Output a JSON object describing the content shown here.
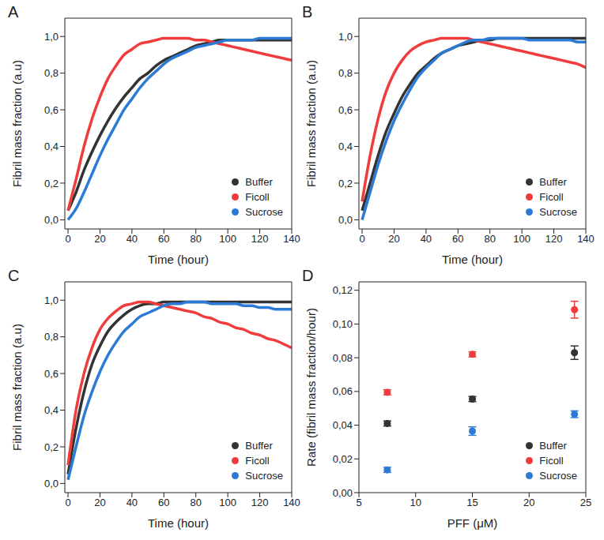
{
  "chart_data": [
    {
      "panel": "A",
      "type": "line",
      "x_label": "Time (hour)",
      "y_label": "Fibril mass fraction (a.u)",
      "x": [
        0,
        5,
        10,
        15,
        20,
        25,
        30,
        35,
        40,
        45,
        50,
        55,
        60,
        65,
        70,
        75,
        80,
        85,
        90,
        95,
        100,
        105,
        110,
        115,
        120,
        125,
        130,
        135,
        140
      ],
      "xlim": [
        -2,
        140
      ],
      "xticks": [
        0,
        20,
        40,
        60,
        80,
        100,
        120,
        140
      ],
      "ylim": [
        -0.05,
        1.1
      ],
      "yticks": [
        {
          "value": 0,
          "label": "0,0"
        },
        {
          "value": 0.2,
          "label": "0,2"
        },
        {
          "value": 0.4,
          "label": "0,4"
        },
        {
          "value": 0.6,
          "label": "0,6"
        },
        {
          "value": 0.8,
          "label": "0,8"
        },
        {
          "value": 1,
          "label": "1,0"
        }
      ],
      "legend": "lower right",
      "series": [
        {
          "name": "Buffer",
          "color": "#333333",
          "values": [
            0.05,
            0.15,
            0.27,
            0.37,
            0.46,
            0.54,
            0.61,
            0.67,
            0.72,
            0.77,
            0.8,
            0.84,
            0.87,
            0.89,
            0.91,
            0.93,
            0.95,
            0.96,
            0.97,
            0.98,
            0.98,
            0.98,
            0.98,
            0.98,
            0.98,
            0.98,
            0.98,
            0.98,
            0.98
          ]
        },
        {
          "name": "Ficoll",
          "color": "#f03c3c",
          "values": [
            0.05,
            0.22,
            0.4,
            0.55,
            0.67,
            0.77,
            0.84,
            0.9,
            0.93,
            0.96,
            0.97,
            0.98,
            0.99,
            0.99,
            0.99,
            0.99,
            0.98,
            0.98,
            0.97,
            0.96,
            0.95,
            0.94,
            0.93,
            0.92,
            0.91,
            0.9,
            0.89,
            0.88,
            0.87
          ]
        },
        {
          "name": "Sucrose",
          "color": "#2b7bd6",
          "values": [
            0.0,
            0.06,
            0.15,
            0.25,
            0.35,
            0.44,
            0.52,
            0.6,
            0.66,
            0.72,
            0.77,
            0.81,
            0.85,
            0.88,
            0.9,
            0.92,
            0.94,
            0.95,
            0.96,
            0.97,
            0.98,
            0.98,
            0.98,
            0.98,
            0.99,
            0.99,
            0.99,
            0.99,
            0.99
          ]
        }
      ]
    },
    {
      "panel": "B",
      "type": "line",
      "x_label": "Time (hour)",
      "y_label": "Fibril mass fraction (a.u)",
      "x": [
        0,
        5,
        10,
        15,
        20,
        25,
        30,
        35,
        40,
        45,
        50,
        55,
        60,
        65,
        70,
        75,
        80,
        85,
        90,
        95,
        100,
        105,
        110,
        115,
        120,
        125,
        130,
        135,
        140
      ],
      "xlim": [
        -2,
        140
      ],
      "xticks": [
        0,
        20,
        40,
        60,
        80,
        100,
        120,
        140
      ],
      "ylim": [
        -0.05,
        1.1
      ],
      "yticks": [
        {
          "value": 0,
          "label": "0,0"
        },
        {
          "value": 0.2,
          "label": "0,2"
        },
        {
          "value": 0.4,
          "label": "0,4"
        },
        {
          "value": 0.6,
          "label": "0,6"
        },
        {
          "value": 0.8,
          "label": "0,8"
        },
        {
          "value": 1,
          "label": "1,0"
        }
      ],
      "legend": "lower right",
      "series": [
        {
          "name": "Buffer",
          "color": "#333333",
          "values": [
            0.05,
            0.2,
            0.35,
            0.48,
            0.58,
            0.67,
            0.74,
            0.8,
            0.84,
            0.88,
            0.91,
            0.93,
            0.95,
            0.96,
            0.97,
            0.98,
            0.98,
            0.99,
            0.99,
            0.99,
            0.99,
            0.99,
            0.99,
            0.99,
            0.99,
            0.99,
            0.99,
            0.99,
            0.99
          ]
        },
        {
          "name": "Ficoll",
          "color": "#f03c3c",
          "values": [
            0.1,
            0.35,
            0.55,
            0.7,
            0.8,
            0.87,
            0.92,
            0.95,
            0.97,
            0.98,
            0.99,
            0.99,
            0.99,
            0.99,
            0.98,
            0.97,
            0.96,
            0.95,
            0.94,
            0.93,
            0.92,
            0.91,
            0.9,
            0.89,
            0.88,
            0.87,
            0.86,
            0.85,
            0.83
          ]
        },
        {
          "name": "Sucrose",
          "color": "#2b7bd6",
          "values": [
            0.0,
            0.15,
            0.3,
            0.43,
            0.54,
            0.63,
            0.71,
            0.78,
            0.83,
            0.87,
            0.91,
            0.93,
            0.95,
            0.97,
            0.98,
            0.98,
            0.99,
            0.99,
            0.99,
            0.99,
            0.99,
            0.98,
            0.98,
            0.98,
            0.98,
            0.98,
            0.98,
            0.97,
            0.97
          ]
        }
      ]
    },
    {
      "panel": "C",
      "type": "line",
      "x_label": "Time (hour)",
      "y_label": "Fibril mass fraction (a.u)",
      "x": [
        0,
        5,
        10,
        15,
        20,
        25,
        30,
        35,
        40,
        45,
        50,
        55,
        60,
        65,
        70,
        75,
        80,
        85,
        90,
        95,
        100,
        105,
        110,
        115,
        120,
        125,
        130,
        135,
        140
      ],
      "xlim": [
        -2,
        140
      ],
      "xticks": [
        0,
        20,
        40,
        60,
        80,
        100,
        120,
        140
      ],
      "ylim": [
        -0.05,
        1.1
      ],
      "yticks": [
        {
          "value": 0,
          "label": "0,0"
        },
        {
          "value": 0.2,
          "label": "0,2"
        },
        {
          "value": 0.4,
          "label": "0,4"
        },
        {
          "value": 0.6,
          "label": "0,6"
        },
        {
          "value": 0.8,
          "label": "0,8"
        },
        {
          "value": 1,
          "label": "1,0"
        }
      ],
      "legend": "lower right",
      "series": [
        {
          "name": "Buffer",
          "color": "#333333",
          "values": [
            0.05,
            0.3,
            0.5,
            0.65,
            0.75,
            0.83,
            0.88,
            0.92,
            0.95,
            0.97,
            0.98,
            0.98,
            0.99,
            0.99,
            0.99,
            0.99,
            0.99,
            0.99,
            0.99,
            0.99,
            0.99,
            0.99,
            0.99,
            0.99,
            0.99,
            0.99,
            0.99,
            0.99,
            0.99
          ]
        },
        {
          "name": "Ficoll",
          "color": "#f03c3c",
          "values": [
            0.1,
            0.4,
            0.6,
            0.74,
            0.84,
            0.9,
            0.94,
            0.97,
            0.98,
            0.99,
            0.99,
            0.98,
            0.97,
            0.96,
            0.95,
            0.94,
            0.93,
            0.91,
            0.9,
            0.88,
            0.87,
            0.85,
            0.84,
            0.82,
            0.81,
            0.79,
            0.78,
            0.76,
            0.74
          ]
        },
        {
          "name": "Sucrose",
          "color": "#2b7bd6",
          "values": [
            0.02,
            0.2,
            0.37,
            0.5,
            0.61,
            0.7,
            0.77,
            0.83,
            0.87,
            0.91,
            0.93,
            0.95,
            0.97,
            0.98,
            0.98,
            0.99,
            0.99,
            0.99,
            0.98,
            0.98,
            0.98,
            0.98,
            0.97,
            0.97,
            0.96,
            0.96,
            0.95,
            0.95,
            0.95
          ]
        }
      ]
    },
    {
      "panel": "D",
      "type": "scatter",
      "x_label": "PFF (μM)",
      "y_label": "Rate (fibril mass fraction/hour)",
      "x": [
        7.5,
        15,
        24
      ],
      "xlim": [
        5,
        25
      ],
      "xticks": [
        5,
        10,
        15,
        20,
        25
      ],
      "ylim": [
        0,
        0.125
      ],
      "yticks": [
        {
          "value": 0,
          "label": "0,00"
        },
        {
          "value": 0.02,
          "label": "0,02"
        },
        {
          "value": 0.04,
          "label": "0,04"
        },
        {
          "value": 0.06,
          "label": "0,06"
        },
        {
          "value": 0.08,
          "label": "0,08"
        },
        {
          "value": 0.1,
          "label": "0,10"
        },
        {
          "value": 0.12,
          "label": "0,12"
        }
      ],
      "legend": "lower right",
      "marker": "circle",
      "series": [
        {
          "name": "Buffer",
          "color": "#333333",
          "values": [
            0.041,
            0.0555,
            0.083
          ],
          "errors": [
            0.0015,
            0.0015,
            0.004
          ]
        },
        {
          "name": "Ficoll",
          "color": "#f03c3c",
          "values": [
            0.0595,
            0.082,
            0.1085
          ],
          "errors": [
            0.0015,
            0.0015,
            0.005
          ]
        },
        {
          "name": "Sucrose",
          "color": "#2b7bd6",
          "values": [
            0.0135,
            0.0365,
            0.0465
          ],
          "errors": [
            0.0015,
            0.0025,
            0.002
          ]
        }
      ]
    }
  ]
}
